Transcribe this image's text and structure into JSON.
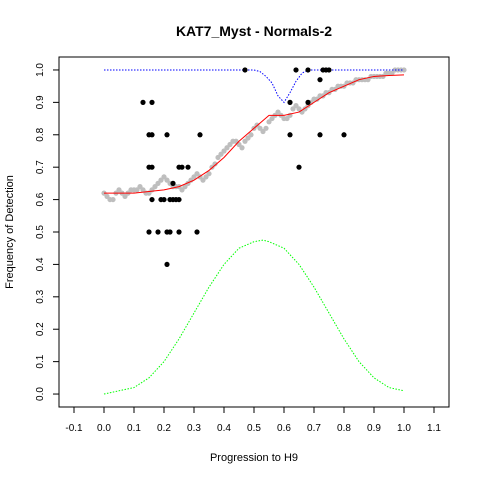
{
  "chart_data": {
    "type": "scatter",
    "title": "KAT7_Myst - Normals-2",
    "xlabel": "Progression to H9",
    "ylabel": "Frequency of Detection",
    "xlim": [
      -0.15,
      1.15
    ],
    "ylim": [
      -0.04,
      1.04
    ],
    "x_ticks": [
      -0.1,
      0.0,
      0.1,
      0.2,
      0.3,
      0.4,
      0.5,
      0.6,
      0.7,
      0.8,
      0.9,
      1.0,
      1.1
    ],
    "x_tick_labels": [
      "-0.1",
      "0.0",
      "0.1",
      "0.2",
      "0.3",
      "0.4",
      "0.5",
      "0.6",
      "0.7",
      "0.8",
      "0.9",
      "1.0",
      "1.1"
    ],
    "y_ticks": [
      0.0,
      0.1,
      0.2,
      0.3,
      0.4,
      0.5,
      0.6,
      0.7,
      0.8,
      0.9,
      1.0
    ],
    "y_tick_labels": [
      "0.0",
      "0.1",
      "0.2",
      "0.3",
      "0.4",
      "0.5",
      "0.6",
      "0.7",
      "0.8",
      "0.9",
      "1.0"
    ],
    "grid": false,
    "series": [
      {
        "kind": "points",
        "color": "#000000",
        "points": [
          [
            0.13,
            0.9
          ],
          [
            0.16,
            0.9
          ],
          [
            0.15,
            0.8
          ],
          [
            0.16,
            0.8
          ],
          [
            0.21,
            0.8
          ],
          [
            0.15,
            0.7
          ],
          [
            0.16,
            0.7
          ],
          [
            0.16,
            0.6
          ],
          [
            0.19,
            0.6
          ],
          [
            0.2,
            0.6
          ],
          [
            0.22,
            0.6
          ],
          [
            0.23,
            0.6
          ],
          [
            0.24,
            0.6
          ],
          [
            0.25,
            0.6
          ],
          [
            0.15,
            0.5
          ],
          [
            0.18,
            0.5
          ],
          [
            0.21,
            0.5
          ],
          [
            0.22,
            0.5
          ],
          [
            0.25,
            0.5
          ],
          [
            0.31,
            0.5
          ],
          [
            0.21,
            0.4
          ],
          [
            0.25,
            0.7
          ],
          [
            0.26,
            0.7
          ],
          [
            0.28,
            0.7
          ],
          [
            0.23,
            0.65
          ],
          [
            0.32,
            0.8
          ],
          [
            0.47,
            1.0
          ],
          [
            0.64,
            1.0
          ],
          [
            0.68,
            1.0
          ],
          [
            0.73,
            1.0
          ],
          [
            0.74,
            1.0
          ],
          [
            0.75,
            1.0
          ],
          [
            0.62,
            0.9
          ],
          [
            0.68,
            0.9
          ],
          [
            0.62,
            0.8
          ],
          [
            0.72,
            0.8
          ],
          [
            0.8,
            0.8
          ],
          [
            0.65,
            0.7
          ],
          [
            0.72,
            0.97
          ]
        ]
      },
      {
        "kind": "smoothed-points",
        "color": "#bebebe",
        "x": [
          0.0,
          0.01,
          0.02,
          0.03,
          0.04,
          0.05,
          0.06,
          0.07,
          0.08,
          0.09,
          0.1,
          0.11,
          0.12,
          0.13,
          0.14,
          0.15,
          0.16,
          0.17,
          0.18,
          0.19,
          0.2,
          0.21,
          0.22,
          0.23,
          0.24,
          0.25,
          0.26,
          0.27,
          0.28,
          0.29,
          0.3,
          0.31,
          0.32,
          0.33,
          0.34,
          0.35,
          0.36,
          0.37,
          0.38,
          0.39,
          0.4,
          0.41,
          0.42,
          0.43,
          0.44,
          0.45,
          0.46,
          0.47,
          0.48,
          0.49,
          0.5,
          0.51,
          0.52,
          0.53,
          0.54,
          0.55,
          0.56,
          0.57,
          0.58,
          0.59,
          0.6,
          0.61,
          0.62,
          0.63,
          0.64,
          0.65,
          0.66,
          0.67,
          0.68,
          0.69,
          0.7,
          0.71,
          0.72,
          0.73,
          0.74,
          0.75,
          0.76,
          0.77,
          0.78,
          0.79,
          0.8,
          0.81,
          0.82,
          0.83,
          0.84,
          0.85,
          0.86,
          0.87,
          0.88,
          0.89,
          0.9,
          0.91,
          0.92,
          0.93,
          0.94,
          0.95,
          0.96,
          0.97,
          0.98,
          0.99,
          1.0
        ],
        "y": [
          0.62,
          0.61,
          0.6,
          0.6,
          0.62,
          0.63,
          0.62,
          0.61,
          0.62,
          0.63,
          0.63,
          0.63,
          0.64,
          0.63,
          0.62,
          0.62,
          0.63,
          0.64,
          0.65,
          0.66,
          0.67,
          0.66,
          0.65,
          0.64,
          0.64,
          0.64,
          0.63,
          0.64,
          0.65,
          0.66,
          0.67,
          0.68,
          0.67,
          0.66,
          0.67,
          0.68,
          0.7,
          0.71,
          0.73,
          0.74,
          0.75,
          0.76,
          0.77,
          0.78,
          0.78,
          0.77,
          0.76,
          0.78,
          0.79,
          0.8,
          0.82,
          0.83,
          0.82,
          0.81,
          0.82,
          0.84,
          0.85,
          0.86,
          0.87,
          0.86,
          0.85,
          0.85,
          0.86,
          0.88,
          0.89,
          0.88,
          0.87,
          0.88,
          0.89,
          0.9,
          0.91,
          0.91,
          0.92,
          0.92,
          0.93,
          0.93,
          0.94,
          0.94,
          0.95,
          0.95,
          0.95,
          0.96,
          0.96,
          0.96,
          0.97,
          0.97,
          0.97,
          0.97,
          0.97,
          0.98,
          0.98,
          0.98,
          0.98,
          0.98,
          0.99,
          0.99,
          0.99,
          1.0,
          1.0,
          1.0,
          1.0
        ]
      },
      {
        "kind": "line",
        "style": "solid",
        "color": "#ff0000",
        "x": [
          0.0,
          0.05,
          0.1,
          0.15,
          0.2,
          0.25,
          0.3,
          0.35,
          0.4,
          0.45,
          0.5,
          0.55,
          0.6,
          0.65,
          0.7,
          0.75,
          0.8,
          0.85,
          0.9,
          0.95,
          1.0
        ],
        "y": [
          0.62,
          0.62,
          0.62,
          0.625,
          0.63,
          0.64,
          0.66,
          0.69,
          0.73,
          0.78,
          0.82,
          0.86,
          0.86,
          0.87,
          0.9,
          0.93,
          0.95,
          0.97,
          0.98,
          0.983,
          0.985
        ]
      },
      {
        "kind": "line",
        "style": "dotted",
        "color": "#0000ff",
        "x": [
          0.0,
          0.1,
          0.2,
          0.3,
          0.4,
          0.45,
          0.48,
          0.5,
          0.52,
          0.54,
          0.56,
          0.58,
          0.6,
          0.62,
          0.64,
          0.66,
          0.68,
          0.7,
          0.8,
          0.9,
          1.0
        ],
        "y": [
          1.0,
          1.0,
          1.0,
          1.0,
          1.0,
          1.0,
          1.0,
          1.0,
          0.995,
          0.98,
          0.96,
          0.92,
          0.9,
          0.93,
          0.965,
          0.99,
          1.0,
          1.0,
          1.0,
          1.0,
          1.0
        ]
      },
      {
        "kind": "line",
        "style": "dotted",
        "color": "#00ff00",
        "x": [
          0.0,
          0.05,
          0.1,
          0.15,
          0.2,
          0.25,
          0.3,
          0.35,
          0.4,
          0.45,
          0.5,
          0.53,
          0.55,
          0.6,
          0.65,
          0.7,
          0.75,
          0.8,
          0.85,
          0.9,
          0.95,
          1.0
        ],
        "y": [
          0.0,
          0.01,
          0.02,
          0.05,
          0.1,
          0.17,
          0.25,
          0.33,
          0.4,
          0.45,
          0.47,
          0.475,
          0.47,
          0.45,
          0.4,
          0.33,
          0.25,
          0.17,
          0.1,
          0.05,
          0.02,
          0.01
        ]
      }
    ]
  }
}
